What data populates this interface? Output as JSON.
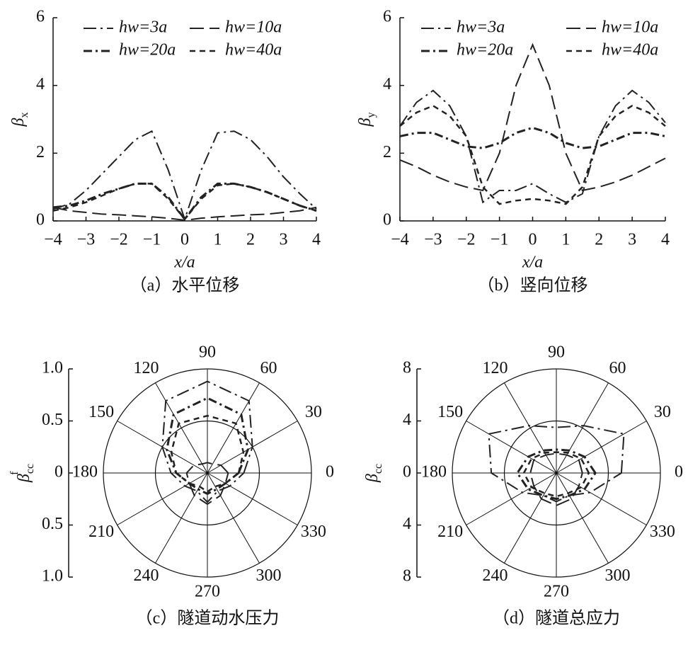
{
  "chart_data": [
    {
      "type": "line",
      "caption": "（a）水平位移",
      "xlabel": "x/a",
      "ylabel_parts": [
        "β",
        "x"
      ],
      "x": [
        -4,
        -3.5,
        -3,
        -2.5,
        -2,
        -1.5,
        -1,
        -0.5,
        0,
        0.5,
        1,
        1.5,
        2,
        2.5,
        3,
        3.5,
        4
      ],
      "xlim": [
        -4,
        4
      ],
      "ylim": [
        0,
        6
      ],
      "xticks": [
        {
          "value": -4,
          "label": "−4"
        },
        {
          "value": -3,
          "label": "−3"
        },
        {
          "value": -2,
          "label": "−2"
        },
        {
          "value": -1,
          "label": "−1"
        },
        0,
        1,
        2,
        3,
        4
      ],
      "yticks": [
        0,
        2,
        4,
        6
      ],
      "series": [
        {
          "name": "hw=3a",
          "color": "#222",
          "dash": "18 6 3 6",
          "width": 2,
          "values": [
            0.35,
            0.5,
            0.9,
            1.4,
            1.9,
            2.4,
            2.65,
            1.5,
            0.05,
            1.5,
            2.6,
            2.65,
            2.4,
            1.9,
            1.3,
            0.8,
            0.35
          ]
        },
        {
          "name": "hw=10a",
          "color": "#222",
          "dash": "20 8",
          "width": 2,
          "values": [
            0.4,
            0.3,
            0.25,
            0.2,
            0.18,
            0.15,
            0.12,
            0.08,
            0.02,
            0.08,
            0.12,
            0.15,
            0.18,
            0.2,
            0.25,
            0.3,
            0.4
          ]
        },
        {
          "name": "hw=20a",
          "color": "#222",
          "dash": "12 5 3 5",
          "width": 3,
          "values": [
            0.4,
            0.45,
            0.6,
            0.8,
            0.95,
            1.1,
            1.1,
            0.7,
            0.05,
            0.7,
            1.1,
            1.1,
            1.0,
            0.85,
            0.65,
            0.45,
            0.3
          ]
        },
        {
          "name": "hw=40a",
          "color": "#222",
          "dash": "8 6",
          "width": 2.5,
          "values": [
            0.3,
            0.4,
            0.55,
            0.75,
            0.95,
            1.1,
            1.1,
            0.65,
            0.05,
            0.65,
            1.05,
            1.1,
            1.0,
            0.85,
            0.65,
            0.45,
            0.3
          ]
        }
      ]
    },
    {
      "type": "line",
      "caption": "（b）竖向位移",
      "xlabel": "x/a",
      "ylabel_parts": [
        "β",
        "y"
      ],
      "x": [
        -4,
        -3.5,
        -3,
        -2.5,
        -2,
        -1.5,
        -1,
        -0.5,
        0,
        0.5,
        1,
        1.5,
        2,
        2.5,
        3,
        3.5,
        4
      ],
      "xlim": [
        -4,
        4
      ],
      "ylim": [
        0,
        6
      ],
      "xticks": [
        {
          "value": -4,
          "label": "−4"
        },
        {
          "value": -3,
          "label": "−3"
        },
        {
          "value": -2,
          "label": "−2"
        },
        {
          "value": -1,
          "label": "−1"
        },
        0,
        1,
        2,
        3,
        4
      ],
      "yticks": [
        0,
        2,
        4,
        6
      ],
      "series": [
        {
          "name": "hw=3a",
          "color": "#222",
          "dash": "18 6 3 6",
          "width": 2,
          "values": [
            2.8,
            3.5,
            3.85,
            3.4,
            2.5,
            0.55,
            0.9,
            0.9,
            1.1,
            0.8,
            0.55,
            0.8,
            2.5,
            3.4,
            3.85,
            3.5,
            2.9
          ]
        },
        {
          "name": "hw=10a",
          "color": "#222",
          "dash": "20 8",
          "width": 2,
          "values": [
            1.8,
            1.6,
            1.35,
            1.15,
            1.0,
            0.9,
            2.0,
            4.0,
            5.2,
            4.0,
            2.0,
            0.9,
            1.0,
            1.15,
            1.35,
            1.6,
            1.85
          ]
        },
        {
          "name": "hw=20a",
          "color": "#222",
          "dash": "12 5 3 5",
          "width": 3,
          "values": [
            2.5,
            2.6,
            2.6,
            2.4,
            2.2,
            2.15,
            2.3,
            2.6,
            2.75,
            2.6,
            2.3,
            2.15,
            2.2,
            2.4,
            2.6,
            2.6,
            2.5
          ]
        },
        {
          "name": "hw=40a",
          "color": "#222",
          "dash": "8 6",
          "width": 2.5,
          "values": [
            2.8,
            3.2,
            3.4,
            3.1,
            2.5,
            1.0,
            0.5,
            0.6,
            0.65,
            0.6,
            0.5,
            1.0,
            2.5,
            3.1,
            3.4,
            3.2,
            2.8
          ]
        }
      ]
    },
    {
      "type": "polar",
      "caption": "（c）隧道动水压力",
      "ylabel_parts": [
        "β",
        "cc",
        "f"
      ],
      "theta": [
        0,
        30,
        60,
        90,
        120,
        150,
        180,
        210,
        240,
        270,
        300,
        330
      ],
      "rlim": [
        0,
        1
      ],
      "rticks": [
        0,
        0.5,
        {
          "value": 1,
          "label": "1.0"
        }
      ],
      "thetaticks": [
        0,
        30,
        60,
        90,
        120,
        150,
        180,
        210,
        240,
        270,
        300,
        330
      ],
      "series": [
        {
          "color": "#222",
          "dash": "18 6 3 6",
          "width": 2,
          "values": [
            0.35,
            0.5,
            0.8,
            0.88,
            0.8,
            0.5,
            0.35,
            0.25,
            0.2,
            0.28,
            0.2,
            0.25
          ]
        },
        {
          "color": "#222",
          "dash": "20 8",
          "width": 2,
          "values": [
            0.2,
            0.15,
            0.1,
            0.1,
            0.1,
            0.15,
            0.2,
            0.2,
            0.25,
            0.3,
            0.25,
            0.2
          ]
        },
        {
          "color": "#222",
          "dash": "12 5 3 5",
          "width": 3,
          "values": [
            0.3,
            0.45,
            0.65,
            0.72,
            0.65,
            0.45,
            0.3,
            0.2,
            0.18,
            0.2,
            0.18,
            0.2
          ]
        },
        {
          "color": "#222",
          "dash": "8 6",
          "width": 2.5,
          "values": [
            0.3,
            0.4,
            0.55,
            0.55,
            0.55,
            0.4,
            0.3,
            0.2,
            0.15,
            0.18,
            0.15,
            0.2
          ]
        }
      ]
    },
    {
      "type": "polar",
      "caption": "（d）隧道总应力",
      "ylabel_parts": [
        "β",
        "cc"
      ],
      "theta": [
        0,
        30,
        60,
        90,
        120,
        150,
        180,
        210,
        240,
        270,
        300,
        330
      ],
      "rlim": [
        0,
        8
      ],
      "rticks": [
        0,
        4,
        8
      ],
      "thetaticks": [
        0,
        30,
        60,
        90,
        120,
        150,
        180,
        210,
        240,
        270,
        300,
        330
      ],
      "series": [
        {
          "color": "#222",
          "dash": "18 6 3 6",
          "width": 2,
          "values": [
            5,
            6,
            4.2,
            3.5,
            4.2,
            6,
            5,
            3,
            2,
            2.2,
            2,
            3
          ]
        },
        {
          "color": "#222",
          "dash": "20 8",
          "width": 2,
          "values": [
            2,
            2,
            1.6,
            1.5,
            1.6,
            2,
            2,
            2,
            2.3,
            2.5,
            2.3,
            2
          ]
        },
        {
          "color": "#222",
          "dash": "12 5 3 5",
          "width": 3,
          "values": [
            3,
            2.5,
            2,
            1.8,
            2,
            2.5,
            3,
            2.5,
            2,
            2,
            2,
            2.5
          ]
        },
        {
          "color": "#222",
          "dash": "8 6",
          "width": 2.5,
          "values": [
            2.5,
            2.2,
            1.8,
            1.6,
            1.8,
            2.2,
            2.5,
            2.2,
            1.8,
            1.8,
            1.8,
            2.2
          ]
        }
      ]
    }
  ]
}
